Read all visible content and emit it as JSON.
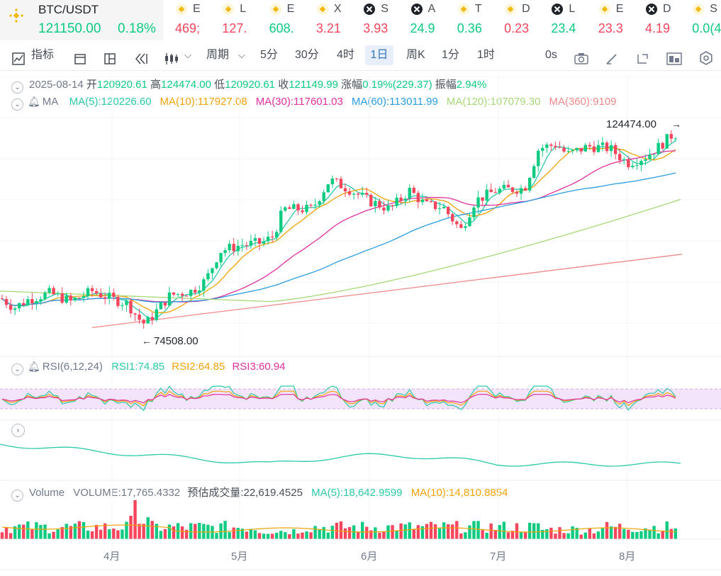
{
  "ticker": {
    "main": {
      "symbol": "BTC/USDT",
      "price": "121150.00",
      "change": "0.18%"
    },
    "items": [
      {
        "name": "E",
        "value": "469;",
        "icon": "binance-icon",
        "color": "#f6465d"
      },
      {
        "name": "L",
        "value": "127.",
        "icon": "binance-icon",
        "color": "#f6465d"
      },
      {
        "name": "E",
        "value": "608.",
        "icon": "binance-icon",
        "color": "#0ecb81"
      },
      {
        "name": "X",
        "value": "3.21",
        "icon": "binance-icon",
        "color": "#f6465d"
      },
      {
        "name": "S",
        "value": "3.93",
        "icon": "x-coin-icon",
        "color": "#f6465d"
      },
      {
        "name": "A",
        "value": "24.9",
        "icon": "x-coin-icon",
        "color": "#0ecb81"
      },
      {
        "name": "T",
        "value": "0.36",
        "icon": "binance-icon",
        "color": "#0ecb81"
      },
      {
        "name": "D",
        "value": "0.23",
        "icon": "binance-icon",
        "color": "#f6465d"
      },
      {
        "name": "L",
        "value": "23.4",
        "icon": "x-coin-icon",
        "color": "#0ecb81"
      },
      {
        "name": "E",
        "value": "23.3",
        "icon": "binance-icon",
        "color": "#f6465d"
      },
      {
        "name": "D",
        "value": "4.19",
        "icon": "x-coin-icon",
        "color": "#f6465d"
      },
      {
        "name": "S",
        "value": "0.0(4",
        "icon": "binance-icon",
        "color": "#0ecb81"
      }
    ]
  },
  "toolbar": {
    "indicators": "指标",
    "period_label": "周期",
    "intervals": [
      "5分",
      "30分",
      "4时",
      "1日",
      "周K",
      "1分",
      "1时"
    ],
    "active_interval": "1日",
    "time_label": "0s"
  },
  "ohlc": {
    "date": "2025-08-14",
    "open_label": "开",
    "open": "120920.61",
    "high_label": "高",
    "high": "124474.00",
    "low_label": "低",
    "low": "120920.61",
    "close_label": "收",
    "close": "121149.99",
    "change_label": "涨幅",
    "change": "0.19%(229.37)",
    "amp_label": "振幅",
    "amp": "2.94%"
  },
  "ma_legend": {
    "title": "MA",
    "items": [
      {
        "text": "MA(5):120226.60",
        "color": "#2ac9a8"
      },
      {
        "text": "MA(10):117927.08",
        "color": "#f0a30a"
      },
      {
        "text": "MA(30):117601.03",
        "color": "#e0309d"
      },
      {
        "text": "MA(60):113011.99",
        "color": "#2a9de0"
      },
      {
        "text": "MA(120):107079.30",
        "color": "#a8d878"
      },
      {
        "text": "MA(360):9109",
        "color": "#f08a8a"
      }
    ]
  },
  "annotations": {
    "high": "124474.00",
    "low": "74508.00"
  },
  "rsi_legend": {
    "title": "RSI(6,12,24)",
    "rsi1": "RSI1:74.85",
    "rsi2": "RSI2:64.85",
    "rsi3": "RSI3:60.94",
    "colors": {
      "rsi1": "#2ac9a8",
      "rsi2": "#f0a30a",
      "rsi3": "#e0309d"
    }
  },
  "volume_legend": {
    "title": "Volume",
    "volume": "VOLUME:17,765.4332",
    "est_label": "预估成交量:",
    "est": "22,619.4525",
    "ma5": "MA(5):18,642.9599",
    "ma10": "MA(10):14,810.8854"
  },
  "x_axis": {
    "labels": [
      "4月",
      "5月",
      "6月",
      "7月",
      "8月"
    ]
  },
  "colors": {
    "up": "#0ecb81",
    "down": "#f6465d",
    "accent": "#3375bb"
  },
  "chart_data": {
    "type": "candlestick",
    "ohlc_last": {
      "open": 120920.61,
      "high": 124474.0,
      "low": 120920.61,
      "close": 121149.99
    },
    "period_high": 124474.0,
    "period_low": 74508.0,
    "ma_last": {
      "ma5": 120226.6,
      "ma10": 117927.08,
      "ma30": 117601.03,
      "ma60": 113011.99,
      "ma120": 107079.3
    },
    "rsi_last": {
      "rsi1": 74.85,
      "rsi2": 64.85,
      "rsi3": 60.94
    },
    "volume_last": 17765.4332,
    "volume_est": 22619.4525,
    "volume_ma5": 18642.9599,
    "volume_ma10": 14810.8854,
    "months": [
      "4月",
      "5月",
      "6月",
      "7月",
      "8月"
    ]
  }
}
